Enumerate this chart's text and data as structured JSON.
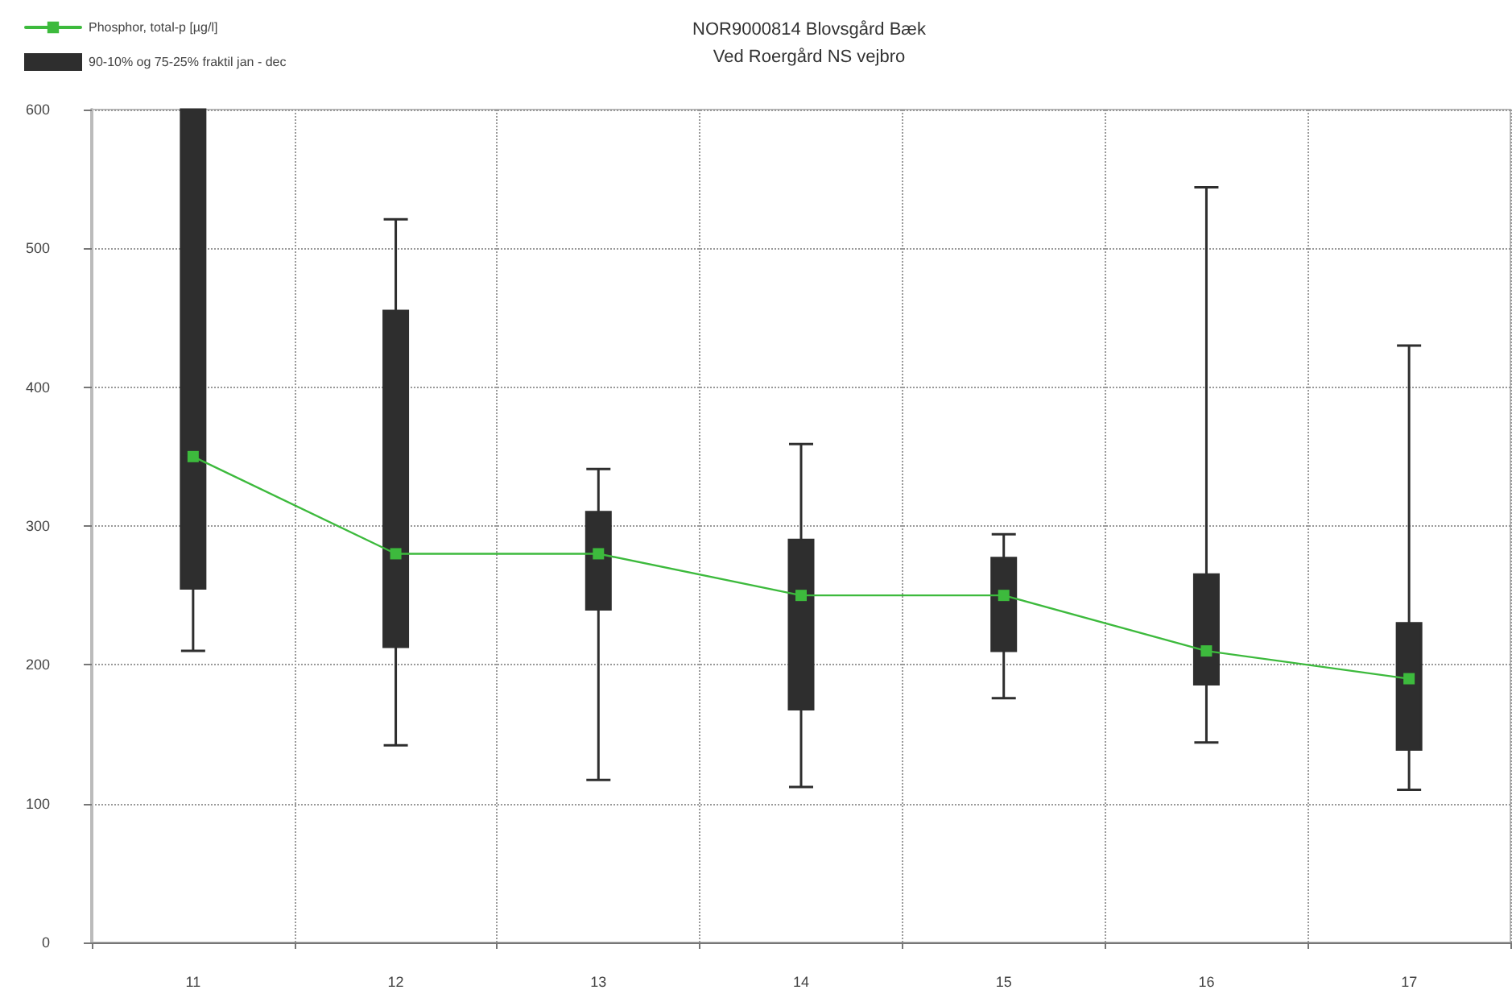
{
  "chart_data": {
    "type": "box",
    "title": "NOR9000814 Blovsgård Bæk",
    "subtitle": "Ved Roergård NS vejbro",
    "categories": [
      "11",
      "12",
      "13",
      "14",
      "15",
      "16",
      "17"
    ],
    "series": [
      {
        "type": "line",
        "name": "Phosphor, total-p [µg/l]",
        "color": "#3dba3d",
        "values": [
          350,
          280,
          280,
          250,
          250,
          210,
          190
        ]
      },
      {
        "name": "90-10% og 75-25% fraktil jan - dec",
        "color": "#2e2e2e",
        "boxes": [
          {
            "low": 210,
            "q1": 255,
            "median": 350,
            "q3": 600,
            "high": 600
          },
          {
            "low": 142,
            "q1": 213,
            "median": 280,
            "q3": 455,
            "high": 521
          },
          {
            "low": 117,
            "q1": 240,
            "median": 280,
            "q3": 310,
            "high": 341
          },
          {
            "low": 112,
            "q1": 168,
            "median": 250,
            "q3": 290,
            "high": 359
          },
          {
            "low": 176,
            "q1": 210,
            "median": 250,
            "q3": 277,
            "high": 294
          },
          {
            "low": 144,
            "q1": 186,
            "median": 210,
            "q3": 265,
            "high": 544
          },
          {
            "low": 110,
            "q1": 139,
            "median": 190,
            "q3": 230,
            "high": 430
          }
        ]
      }
    ],
    "ylim": [
      0,
      600
    ],
    "yticks": [
      0,
      100,
      200,
      300,
      400,
      500,
      600
    ],
    "grid": true,
    "legend": "top left",
    "marker": "square",
    "line_style": "solid"
  }
}
